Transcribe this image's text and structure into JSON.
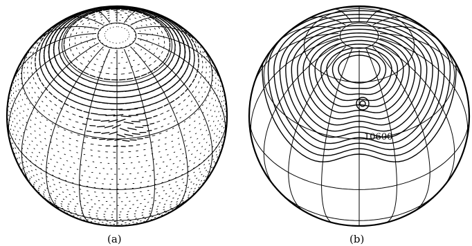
{
  "panels": [
    {
      "id": "a",
      "caption": "(a)",
      "content": "velocity-vector-field"
    },
    {
      "id": "b",
      "caption": "(b)",
      "content": "contour-lines",
      "contour_label": "10600"
    }
  ],
  "colors": {
    "ink": "#000000",
    "background": "#ffffff"
  }
}
